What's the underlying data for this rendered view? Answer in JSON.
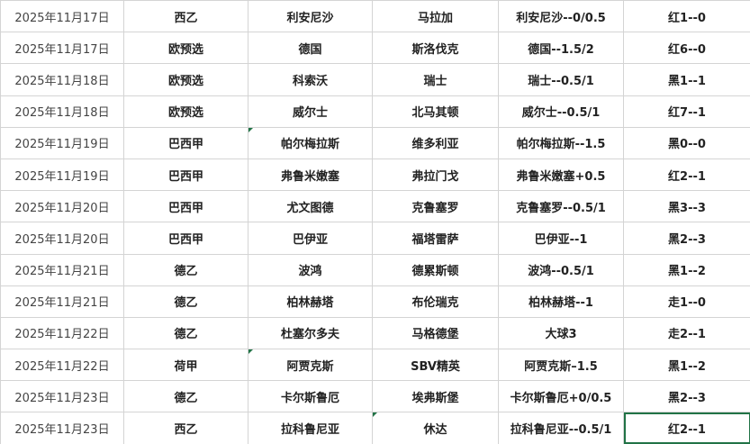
{
  "table": {
    "rows": [
      [
        "2025年11月17日",
        "西乙",
        "利安尼沙",
        "马拉加",
        "利安尼沙--0/0.5",
        "红1--0"
      ],
      [
        "2025年11月17日",
        "欧预选",
        "德国",
        "斯洛伐克",
        "德国--1.5/2",
        "红6--0"
      ],
      [
        "2025年11月18日",
        "欧预选",
        "科索沃",
        "瑞士",
        "瑞士--0.5/1",
        "黑1--1"
      ],
      [
        "2025年11月18日",
        "欧预选",
        "威尔士",
        "北马其顿",
        "威尔士--0.5/1",
        "红7--1"
      ],
      [
        "2025年11月19日",
        "巴西甲",
        "帕尔梅拉斯",
        "维多利亚",
        "帕尔梅拉斯--1.5",
        "黑0--0"
      ],
      [
        "2025年11月19日",
        "巴西甲",
        "弗鲁米嫩塞",
        "弗拉门戈",
        "弗鲁米嫩塞+0.5",
        "红2--1"
      ],
      [
        "2025年11月20日",
        "巴西甲",
        "尤文图德",
        "克鲁塞罗",
        "克鲁塞罗--0.5/1",
        "黑3--3"
      ],
      [
        "2025年11月20日",
        "巴西甲",
        "巴伊亚",
        "福塔雷萨",
        "巴伊亚--1",
        "黑2--3"
      ],
      [
        "2025年11月21日",
        "德乙",
        "波鸿",
        "德累斯顿",
        "波鸿--0.5/1",
        "黑1--2"
      ],
      [
        "2025年11月21日",
        "德乙",
        "柏林赫塔",
        "布伦瑞克",
        "柏林赫塔--1",
        "走1--0"
      ],
      [
        "2025年11月22日",
        "德乙",
        "杜塞尔多夫",
        "马格德堡",
        "大球3",
        "走2--1"
      ],
      [
        "2025年11月22日",
        "荷甲",
        "阿贾克斯",
        "SBV精英",
        "阿贾克斯–1.5",
        "黑1--2"
      ],
      [
        "2025年11月23日",
        "德乙",
        "卡尔斯鲁厄",
        "埃弗斯堡",
        "卡尔斯鲁厄+0/0.5",
        "黑2--3"
      ],
      [
        "2025年11月23日",
        "西乙",
        "拉科鲁尼亚",
        "休达",
        "拉科鲁尼亚--0.5/1",
        "红2--1"
      ]
    ]
  }
}
